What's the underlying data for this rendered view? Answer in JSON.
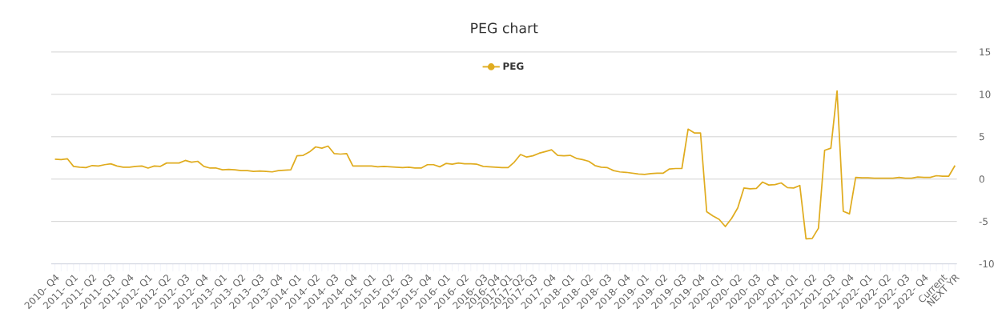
{
  "chart_data": {
    "type": "line",
    "title": "PEG chart",
    "categories": [
      "2010- Q4",
      null,
      null,
      "2011- Q1",
      null,
      null,
      "2011- Q2",
      null,
      null,
      "2011- Q3",
      null,
      null,
      "2011- Q4",
      null,
      null,
      "2012- Q1",
      null,
      null,
      "2012- Q2",
      null,
      null,
      "2012- Q3",
      null,
      null,
      "2012- Q4",
      null,
      null,
      "2013- Q1",
      null,
      null,
      "2013- Q2",
      null,
      null,
      "2013- Q3",
      null,
      null,
      "2013- Q4",
      null,
      null,
      "2014- Q1",
      null,
      null,
      "2014- Q2",
      null,
      null,
      "2014- Q3",
      null,
      null,
      "2014- Q4",
      null,
      null,
      "2015- Q1",
      null,
      null,
      "2015- Q2",
      null,
      null,
      "2015- Q3",
      null,
      null,
      "2015- Q4",
      null,
      null,
      "2016- Q1",
      null,
      null,
      "2016- Q2",
      null,
      null,
      "2016- Q3",
      null,
      "2016- Q4",
      null,
      "2017- Q1",
      null,
      "2017- Q2",
      null,
      "2017- Q3",
      null,
      null,
      "2017- Q4",
      null,
      null,
      "2018- Q1",
      null,
      null,
      "2018- Q2",
      null,
      null,
      "2018- Q3",
      null,
      null,
      "2018- Q4",
      null,
      null,
      "2019- Q1",
      null,
      null,
      "2019- Q2",
      null,
      null,
      "2019- Q3",
      null,
      null,
      "2019- Q4",
      null,
      null,
      "2020- Q1",
      null,
      null,
      "2020- Q2",
      null,
      null,
      "2020- Q3",
      null,
      null,
      "2020- Q4",
      null,
      null,
      "2021- Q1",
      null,
      null,
      "2021- Q2",
      null,
      null,
      "2021- Q3",
      null,
      null,
      "2021- Q4",
      null,
      null,
      "2022- Q1",
      null,
      null,
      "2022- Q2",
      null,
      null,
      "2022- Q3",
      null,
      null,
      "2022- Q4",
      null,
      null,
      "Current",
      null,
      "NEXT YR"
    ],
    "series": [
      {
        "name": "PEG",
        "color": "#e0ac1f",
        "values": [
          2.35,
          2.3,
          2.4,
          1.5,
          1.4,
          1.35,
          1.6,
          1.55,
          1.7,
          1.8,
          1.55,
          1.4,
          1.4,
          1.5,
          1.55,
          1.3,
          1.55,
          1.5,
          1.9,
          1.9,
          1.9,
          2.2,
          2.0,
          2.1,
          1.5,
          1.3,
          1.3,
          1.1,
          1.15,
          1.1,
          1.0,
          1.0,
          0.9,
          0.95,
          0.9,
          0.85,
          1.0,
          1.05,
          1.1,
          2.75,
          2.8,
          3.2,
          3.8,
          3.65,
          3.9,
          3.0,
          2.95,
          3.0,
          1.55,
          1.55,
          1.55,
          1.55,
          1.45,
          1.5,
          1.45,
          1.4,
          1.35,
          1.4,
          1.3,
          1.3,
          1.7,
          1.7,
          1.45,
          1.85,
          1.75,
          1.9,
          1.8,
          1.8,
          1.75,
          1.5,
          1.45,
          1.4,
          1.35,
          1.35,
          2.0,
          2.9,
          2.6,
          2.75,
          3.05,
          3.25,
          3.45,
          2.8,
          2.75,
          2.8,
          2.45,
          2.3,
          2.1,
          1.6,
          1.4,
          1.35,
          1.0,
          0.85,
          0.8,
          0.7,
          0.6,
          0.55,
          0.65,
          0.7,
          0.7,
          1.2,
          1.25,
          1.25,
          5.9,
          5.45,
          5.45,
          -3.85,
          -4.35,
          -4.75,
          -5.6,
          -4.65,
          -3.4,
          -1.05,
          -1.15,
          -1.1,
          -0.35,
          -0.7,
          -0.65,
          -0.45,
          -1.0,
          -1.05,
          -0.75,
          -7.05,
          -7.0,
          -5.8,
          3.4,
          3.65,
          10.4,
          -3.8,
          -4.1,
          0.2,
          0.15,
          0.15,
          0.1,
          0.1,
          0.1,
          0.1,
          0.2,
          0.1,
          0.1,
          0.25,
          0.2,
          0.2,
          0.4,
          0.35,
          0.35,
          1.6
        ]
      }
    ],
    "ylim": [
      -10,
      15
    ],
    "yticks": [
      -10,
      -5,
      0,
      5,
      10,
      15
    ],
    "grid": "y",
    "legend": "top"
  }
}
